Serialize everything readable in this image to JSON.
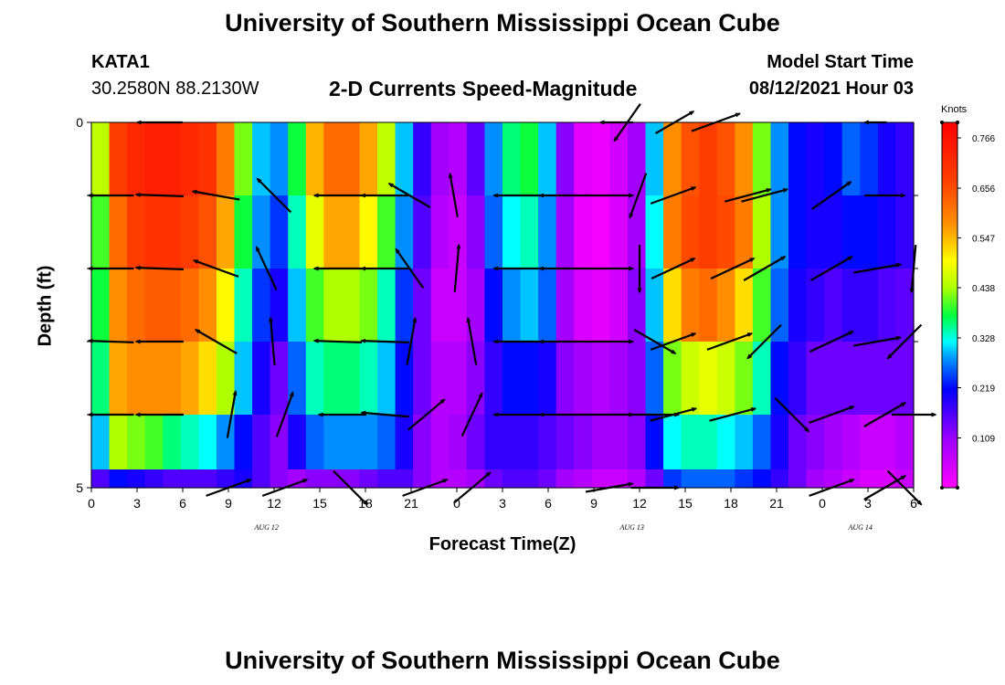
{
  "header": {
    "title": "University of Southern Mississippi Ocean Cube",
    "station": "KATA1",
    "coords": "30.2580N  88.2130W",
    "plot_title": "2-D Currents Speed-Magnitude",
    "model_label": "Model Start Time",
    "model_time": "08/12/2021 Hour 03"
  },
  "footer": {
    "title": "University of Southern Mississippi Ocean Cube"
  },
  "chart_data": {
    "type": "heatmap",
    "title": "2-D Currents Speed-Magnitude",
    "xlabel": "Forecast Time(Z)",
    "ylabel": "Depth (ft)",
    "units": "Knots",
    "xlim": [
      0,
      54
    ],
    "ylim": [
      0,
      5
    ],
    "x_ticks": [
      "0",
      "3",
      "6",
      "9",
      "12",
      "15",
      "18",
      "21",
      "0",
      "3",
      "6",
      "9",
      "12",
      "15",
      "18",
      "21",
      "0",
      "3",
      "6"
    ],
    "x_tick_hours": [
      0,
      3,
      6,
      9,
      12,
      15,
      18,
      21,
      24,
      27,
      30,
      33,
      36,
      39,
      42,
      45,
      48,
      51,
      54
    ],
    "y_tick_labels": [
      {
        "depth": 0,
        "label": "0"
      },
      {
        "depth": 5,
        "label": "5"
      }
    ],
    "y_minor_depths": [
      1,
      2,
      3,
      4
    ],
    "date_labels": [
      {
        "text": "AUG  12",
        "hour": 11.5
      },
      {
        "text": "AUG  13",
        "hour": 35.5
      },
      {
        "text": "AUG  14",
        "hour": 50.5
      }
    ],
    "colorbar": {
      "min": 0.0,
      "max": 0.8,
      "tick_values": [
        0.766,
        0.656,
        0.547,
        0.438,
        0.328,
        0.219,
        0.109
      ],
      "tick_labels": [
        "0.766",
        "0.656",
        "0.547",
        "0.438",
        "0.328",
        "0.219",
        "0.109"
      ]
    },
    "speed_rows": [
      {
        "depth": 0.5,
        "values": [
          0.45,
          0.68,
          0.72,
          0.74,
          0.74,
          0.72,
          0.7,
          0.6,
          0.42,
          0.3,
          0.28,
          0.38,
          0.55,
          0.62,
          0.62,
          0.56,
          0.45,
          0.3,
          0.18,
          0.1,
          0.08,
          0.15,
          0.28,
          0.36,
          0.38,
          0.3,
          0.12,
          0.03,
          0.02,
          0.05,
          0.1,
          0.3,
          0.58,
          0.65,
          0.68,
          0.65,
          0.58,
          0.42,
          0.28,
          0.22,
          0.2,
          0.22,
          0.26,
          0.24,
          0.2,
          0.18
        ]
      },
      {
        "depth": 1.5,
        "values": [
          0.4,
          0.62,
          0.68,
          0.7,
          0.7,
          0.68,
          0.65,
          0.56,
          0.38,
          0.28,
          0.24,
          0.34,
          0.48,
          0.56,
          0.56,
          0.5,
          0.4,
          0.28,
          0.16,
          0.08,
          0.06,
          0.12,
          0.26,
          0.32,
          0.34,
          0.28,
          0.1,
          0.02,
          0.01,
          0.04,
          0.1,
          0.32,
          0.6,
          0.66,
          0.68,
          0.66,
          0.6,
          0.44,
          0.28,
          0.22,
          0.2,
          0.2,
          0.22,
          0.22,
          0.2,
          0.18
        ]
      },
      {
        "depth": 2.5,
        "values": [
          0.38,
          0.58,
          0.62,
          0.64,
          0.64,
          0.62,
          0.58,
          0.5,
          0.34,
          0.24,
          0.2,
          0.3,
          0.4,
          0.44,
          0.44,
          0.42,
          0.34,
          0.24,
          0.14,
          0.06,
          0.06,
          0.1,
          0.22,
          0.28,
          0.3,
          0.26,
          0.1,
          0.04,
          0.03,
          0.05,
          0.12,
          0.3,
          0.52,
          0.6,
          0.62,
          0.58,
          0.52,
          0.4,
          0.26,
          0.2,
          0.18,
          0.16,
          0.18,
          0.18,
          0.16,
          0.15
        ]
      },
      {
        "depth": 3.5,
        "values": [
          0.36,
          0.56,
          0.58,
          0.58,
          0.58,
          0.56,
          0.52,
          0.44,
          0.3,
          0.2,
          0.14,
          0.26,
          0.34,
          0.36,
          0.36,
          0.34,
          0.3,
          0.22,
          0.14,
          0.08,
          0.08,
          0.12,
          0.18,
          0.22,
          0.22,
          0.2,
          0.12,
          0.1,
          0.08,
          0.1,
          0.12,
          0.26,
          0.42,
          0.46,
          0.48,
          0.46,
          0.42,
          0.34,
          0.22,
          0.18,
          0.14,
          0.14,
          0.14,
          0.14,
          0.14,
          0.14
        ]
      },
      {
        "depth": 4.5,
        "values": [
          0.3,
          0.44,
          0.42,
          0.4,
          0.36,
          0.34,
          0.32,
          0.28,
          0.22,
          0.16,
          0.12,
          0.2,
          0.26,
          0.28,
          0.28,
          0.28,
          0.26,
          0.2,
          0.12,
          0.08,
          0.1,
          0.14,
          0.18,
          0.18,
          0.18,
          0.16,
          0.14,
          0.12,
          0.1,
          0.1,
          0.12,
          0.22,
          0.32,
          0.34,
          0.34,
          0.32,
          0.3,
          0.26,
          0.2,
          0.14,
          0.12,
          0.1,
          0.08,
          0.06,
          0.06,
          0.08
        ]
      },
      {
        "depth": 5.0,
        "values": [
          0.16,
          0.22,
          0.2,
          0.18,
          0.16,
          0.16,
          0.16,
          0.18,
          0.2,
          0.16,
          0.12,
          0.1,
          0.12,
          0.12,
          0.12,
          0.14,
          0.16,
          0.16,
          0.12,
          0.08,
          0.08,
          0.1,
          0.14,
          0.16,
          0.16,
          0.14,
          0.1,
          0.08,
          0.06,
          0.06,
          0.08,
          0.14,
          0.24,
          0.26,
          0.26,
          0.26,
          0.24,
          0.22,
          0.18,
          0.14,
          0.1,
          0.08,
          0.06,
          0.04,
          0.04,
          0.06
        ]
      }
    ],
    "vectors": [
      {
        "depth": 0,
        "hour": 4.5,
        "dir": 270,
        "len": 0.62
      },
      {
        "depth": 0,
        "hour": 34.5,
        "dir": 270,
        "len": 0.45
      },
      {
        "depth": 0,
        "hour": 35.2,
        "dir": 215,
        "len": 0.62
      },
      {
        "depth": 0,
        "hour": 38.3,
        "dir": 60,
        "len": 0.6
      },
      {
        "depth": 0,
        "hour": 41,
        "dir": 70,
        "len": 0.7
      },
      {
        "depth": 0,
        "hour": 51.5,
        "dir": 270,
        "len": 0.3
      },
      {
        "depth": 1,
        "hour": 1.3,
        "dir": 270,
        "len": 0.62
      },
      {
        "depth": 1,
        "hour": 4.5,
        "dir": 272,
        "len": 0.65
      },
      {
        "depth": 1,
        "hour": 8.2,
        "dir": 280,
        "len": 0.65
      },
      {
        "depth": 1,
        "hour": 12,
        "dir": 315,
        "len": 0.65
      },
      {
        "depth": 1,
        "hour": 16.2,
        "dir": 270,
        "len": 0.65
      },
      {
        "depth": 1,
        "hour": 19.3,
        "dir": 270,
        "len": 0.65
      },
      {
        "depth": 1,
        "hour": 20.9,
        "dir": 300,
        "len": 0.65
      },
      {
        "depth": 1,
        "hour": 23.8,
        "dir": 350,
        "len": 0.6
      },
      {
        "depth": 1,
        "hour": 28,
        "dir": 270,
        "len": 0.65
      },
      {
        "depth": 1,
        "hour": 31,
        "dir": 270,
        "len": 0.65
      },
      {
        "depth": 1,
        "hour": 34,
        "dir": 90,
        "len": 0.65
      },
      {
        "depth": 1,
        "hour": 35.9,
        "dir": 200,
        "len": 0.65
      },
      {
        "depth": 1,
        "hour": 38.2,
        "dir": 70,
        "len": 0.65
      },
      {
        "depth": 1,
        "hour": 43.1,
        "dir": 75,
        "len": 0.65
      },
      {
        "depth": 1,
        "hour": 44.2,
        "dir": 75,
        "len": 0.65
      },
      {
        "depth": 1,
        "hour": 48.6,
        "dir": 55,
        "len": 0.65
      },
      {
        "depth": 1,
        "hour": 52.1,
        "dir": 90,
        "len": 0.55
      },
      {
        "depth": 2,
        "hour": 1.3,
        "dir": 270,
        "len": 0.62
      },
      {
        "depth": 2,
        "hour": 4.5,
        "dir": 272,
        "len": 0.65
      },
      {
        "depth": 2,
        "hour": 8.2,
        "dir": 290,
        "len": 0.65
      },
      {
        "depth": 2,
        "hour": 11.5,
        "dir": 335,
        "len": 0.65
      },
      {
        "depth": 2,
        "hour": 16.2,
        "dir": 270,
        "len": 0.65
      },
      {
        "depth": 2,
        "hour": 19.3,
        "dir": 270,
        "len": 0.65
      },
      {
        "depth": 2,
        "hour": 20.9,
        "dir": 325,
        "len": 0.65
      },
      {
        "depth": 2,
        "hour": 24,
        "dir": 5,
        "len": 0.65
      },
      {
        "depth": 2,
        "hour": 28,
        "dir": 270,
        "len": 0.65
      },
      {
        "depth": 2,
        "hour": 31,
        "dir": 270,
        "len": 0.65
      },
      {
        "depth": 2,
        "hour": 34,
        "dir": 90,
        "len": 0.65
      },
      {
        "depth": 2,
        "hour": 36,
        "dir": 180,
        "len": 0.65
      },
      {
        "depth": 2,
        "hour": 38.2,
        "dir": 65,
        "len": 0.65
      },
      {
        "depth": 2,
        "hour": 42.1,
        "dir": 65,
        "len": 0.65
      },
      {
        "depth": 2,
        "hour": 44.2,
        "dir": 60,
        "len": 0.65
      },
      {
        "depth": 2,
        "hour": 48.6,
        "dir": 60,
        "len": 0.65
      },
      {
        "depth": 2,
        "hour": 51.6,
        "dir": 80,
        "len": 0.65
      },
      {
        "depth": 2,
        "hour": 54,
        "dir": 185,
        "len": 0.65
      },
      {
        "depth": 3,
        "hour": 1.3,
        "dir": 272,
        "len": 0.62
      },
      {
        "depth": 3,
        "hour": 4.5,
        "dir": 270,
        "len": 0.65
      },
      {
        "depth": 3,
        "hour": 8.2,
        "dir": 300,
        "len": 0.65
      },
      {
        "depth": 3,
        "hour": 11.9,
        "dir": 355,
        "len": 0.65
      },
      {
        "depth": 3,
        "hour": 16.2,
        "dir": 272,
        "len": 0.65
      },
      {
        "depth": 3,
        "hour": 19.3,
        "dir": 272,
        "len": 0.65
      },
      {
        "depth": 3,
        "hour": 21,
        "dir": 10,
        "len": 0.65
      },
      {
        "depth": 3,
        "hour": 25,
        "dir": 350,
        "len": 0.65
      },
      {
        "depth": 3,
        "hour": 28,
        "dir": 270,
        "len": 0.65
      },
      {
        "depth": 3,
        "hour": 31,
        "dir": 270,
        "len": 0.65
      },
      {
        "depth": 3,
        "hour": 34,
        "dir": 90,
        "len": 0.65
      },
      {
        "depth": 3,
        "hour": 37,
        "dir": 120,
        "len": 0.65
      },
      {
        "depth": 3,
        "hour": 38.2,
        "dir": 70,
        "len": 0.65
      },
      {
        "depth": 3,
        "hour": 41.9,
        "dir": 70,
        "len": 0.65
      },
      {
        "depth": 3,
        "hour": 44.2,
        "dir": 225,
        "len": 0.65
      },
      {
        "depth": 3,
        "hour": 48.6,
        "dir": 65,
        "len": 0.65
      },
      {
        "depth": 3,
        "hour": 51.6,
        "dir": 80,
        "len": 0.65
      },
      {
        "depth": 3,
        "hour": 53.4,
        "dir": 225,
        "len": 0.65
      },
      {
        "depth": 4,
        "hour": 1.3,
        "dir": 270,
        "len": 0.62
      },
      {
        "depth": 4,
        "hour": 4.5,
        "dir": 270,
        "len": 0.65
      },
      {
        "depth": 4,
        "hour": 9.2,
        "dir": 10,
        "len": 0.65
      },
      {
        "depth": 4,
        "hour": 12.7,
        "dir": 20,
        "len": 0.65
      },
      {
        "depth": 4,
        "hour": 16.5,
        "dir": 270,
        "len": 0.65
      },
      {
        "depth": 4,
        "hour": 19.3,
        "dir": 275,
        "len": 0.65
      },
      {
        "depth": 4,
        "hour": 22,
        "dir": 50,
        "len": 0.65
      },
      {
        "depth": 4,
        "hour": 25,
        "dir": 25,
        "len": 0.65
      },
      {
        "depth": 4,
        "hour": 28,
        "dir": 270,
        "len": 0.65
      },
      {
        "depth": 4,
        "hour": 31,
        "dir": 270,
        "len": 0.65
      },
      {
        "depth": 4,
        "hour": 34,
        "dir": 90,
        "len": 0.65
      },
      {
        "depth": 4,
        "hour": 37,
        "dir": 90,
        "len": 0.65
      },
      {
        "depth": 4,
        "hour": 38.2,
        "dir": 75,
        "len": 0.65
      },
      {
        "depth": 4,
        "hour": 42.1,
        "dir": 75,
        "len": 0.65
      },
      {
        "depth": 4,
        "hour": 46,
        "dir": 135,
        "len": 0.65
      },
      {
        "depth": 4,
        "hour": 48.6,
        "dir": 70,
        "len": 0.65
      },
      {
        "depth": 4,
        "hour": 52.1,
        "dir": 60,
        "len": 0.65
      },
      {
        "depth": 4,
        "hour": 54,
        "dir": 90,
        "len": 0.6
      },
      {
        "depth": 5,
        "hour": 9,
        "dir": 70,
        "len": 0.65
      },
      {
        "depth": 5,
        "hour": 12.7,
        "dir": 70,
        "len": 0.65
      },
      {
        "depth": 5,
        "hour": 17,
        "dir": 135,
        "len": 0.65
      },
      {
        "depth": 5,
        "hour": 21.9,
        "dir": 70,
        "len": 0.65
      },
      {
        "depth": 5,
        "hour": 25,
        "dir": 50,
        "len": 0.65
      },
      {
        "depth": 5,
        "hour": 34,
        "dir": 80,
        "len": 0.65
      },
      {
        "depth": 5,
        "hour": 37,
        "dir": 90,
        "len": 0.65
      },
      {
        "depth": 5,
        "hour": 48.6,
        "dir": 70,
        "len": 0.65
      },
      {
        "depth": 5,
        "hour": 52.1,
        "dir": 60,
        "len": 0.65
      },
      {
        "depth": 5,
        "hour": 53.4,
        "dir": 135,
        "len": 0.65
      }
    ]
  }
}
